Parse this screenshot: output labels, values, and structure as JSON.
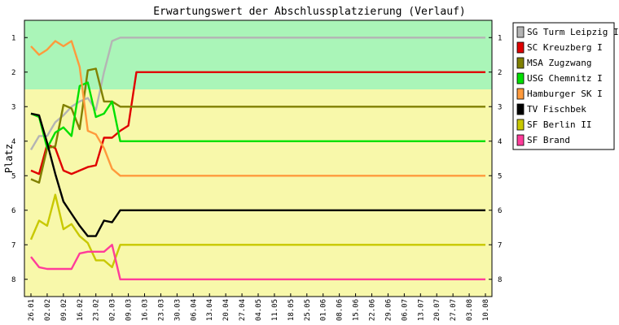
{
  "chart_data": {
    "type": "line",
    "title": "Erwartungswert der Abschlussplatzierung (Verlauf)",
    "ylabel": "Platz",
    "xlabel": "",
    "ylim": [
      0.5,
      8.5
    ],
    "y_inverted": true,
    "y_ticks": [
      1,
      2,
      3,
      4,
      5,
      6,
      7,
      8
    ],
    "grid": false,
    "legend_position": "right",
    "bands": [
      {
        "from": 0.5,
        "to": 2.5,
        "color": "#aaf5b8"
      },
      {
        "from": 2.5,
        "to": 8.5,
        "color": "#f8f8aa"
      }
    ],
    "categories": [
      "26.01",
      "02.02",
      "09.02",
      "16.02",
      "23.02",
      "02.03",
      "09.03",
      "16.03",
      "23.03",
      "30.03",
      "06.04",
      "13.04",
      "20.04",
      "27.04",
      "04.05",
      "11.05",
      "18.05",
      "25.05",
      "01.06",
      "08.06",
      "15.06",
      "22.06",
      "29.06",
      "06.07",
      "13.07",
      "20.07",
      "27.07",
      "03.08",
      "10.08"
    ],
    "series": [
      {
        "name": "SG Turm Leipzig I",
        "color": "#b4b4b4",
        "x": [
          0,
          0.5,
          1,
          1.5,
          2,
          2.5,
          3,
          3.5,
          4,
          4.5,
          5,
          5.5,
          6,
          6.5,
          7,
          7.5,
          8,
          8.5,
          9,
          9.5,
          10,
          10.5,
          11,
          28
        ],
        "values": [
          4.25,
          3.85,
          3.85,
          3.45,
          3.25,
          3.0,
          2.85,
          2.75,
          3.1,
          2.0,
          1.1,
          1.0,
          1.0,
          1.0,
          1.0,
          1.0,
          1.0,
          1.0,
          1.0,
          1.0,
          1.0,
          1.0,
          1.0,
          1.0
        ]
      },
      {
        "name": "SC Kreuzberg I",
        "color": "#e00000",
        "x": [
          0,
          0.5,
          1,
          1.5,
          2,
          2.5,
          3,
          3.5,
          4,
          4.5,
          5,
          5.5,
          6,
          6.5,
          7,
          7.5,
          8,
          8.5,
          9,
          9.5,
          10,
          10.5,
          11,
          28
        ],
        "values": [
          4.85,
          4.95,
          4.1,
          4.2,
          4.85,
          4.95,
          4.85,
          4.75,
          4.7,
          3.9,
          3.9,
          3.7,
          3.55,
          2.0,
          2.0,
          2.0,
          2.0,
          2.0,
          2.0,
          2.0,
          2.0,
          2.0,
          2.0,
          2.0
        ]
      },
      {
        "name": "MSA Zugzwang",
        "color": "#808000",
        "x": [
          0,
          0.5,
          1,
          1.5,
          2,
          2.5,
          3,
          3.5,
          4,
          4.5,
          5,
          5.5,
          6,
          6.5,
          7,
          7.5,
          8,
          8.5,
          9,
          9.5,
          10,
          10.5,
          11,
          28
        ],
        "values": [
          5.1,
          5.2,
          4.2,
          4.15,
          2.95,
          3.05,
          3.65,
          1.95,
          1.9,
          2.85,
          2.85,
          3.0,
          3.0,
          3.0,
          3.0,
          3.0,
          3.0,
          3.0,
          3.0,
          3.0,
          3.0,
          3.0,
          3.0,
          3.0
        ]
      },
      {
        "name": "USG Chemnitz I",
        "color": "#00e000",
        "x": [
          0,
          0.5,
          1,
          1.5,
          2,
          2.5,
          3,
          3.5,
          4,
          4.5,
          5,
          5.5,
          6,
          6.5,
          7,
          7.5,
          8,
          8.5,
          9,
          9.5,
          10,
          10.5,
          11,
          28
        ],
        "values": [
          3.2,
          3.3,
          4.2,
          3.75,
          3.6,
          3.85,
          2.4,
          2.3,
          3.3,
          3.2,
          2.85,
          4.0,
          4.0,
          4.0,
          4.0,
          4.0,
          4.0,
          4.0,
          4.0,
          4.0,
          4.0,
          4.0,
          4.0,
          4.0
        ]
      },
      {
        "name": "Hamburger SK I",
        "color": "#ff9a3c",
        "x": [
          0,
          0.5,
          1,
          1.5,
          2,
          2.5,
          3,
          3.5,
          4,
          4.5,
          5,
          5.5,
          6,
          6.5,
          7,
          7.5,
          8,
          8.5,
          9,
          9.5,
          10,
          10.5,
          11,
          28
        ],
        "values": [
          1.25,
          1.5,
          1.35,
          1.1,
          1.25,
          1.1,
          1.85,
          3.7,
          3.8,
          4.2,
          4.8,
          5.0,
          5.0,
          5.0,
          5.0,
          5.0,
          5.0,
          5.0,
          5.0,
          5.0,
          5.0,
          5.0,
          5.0,
          5.0
        ]
      },
      {
        "name": "TV Fischbek",
        "color": "#000000",
        "x": [
          0,
          0.5,
          1,
          1.5,
          2,
          2.5,
          3,
          3.5,
          4,
          4.5,
          5,
          5.5,
          6,
          6.5,
          7,
          7.5,
          8,
          8.5,
          9,
          9.5,
          10,
          10.5,
          11,
          28
        ],
        "values": [
          3.2,
          3.25,
          4.05,
          4.95,
          5.75,
          6.1,
          6.45,
          6.75,
          6.75,
          6.3,
          6.35,
          6.0,
          6.0,
          6.0,
          6.0,
          6.0,
          6.0,
          6.0,
          6.0,
          6.0,
          6.0,
          6.0,
          6.0,
          6.0
        ]
      },
      {
        "name": "SF Berlin II",
        "color": "#c8c800",
        "x": [
          0,
          0.5,
          1,
          1.5,
          2,
          2.5,
          3,
          3.5,
          4,
          4.5,
          5,
          5.5,
          6,
          6.5,
          7,
          7.5,
          8,
          8.5,
          9,
          9.5,
          10,
          10.5,
          11,
          28
        ],
        "values": [
          6.85,
          6.3,
          6.45,
          5.55,
          6.55,
          6.4,
          6.75,
          6.95,
          7.45,
          7.45,
          7.65,
          7.0,
          7.0,
          7.0,
          7.0,
          7.0,
          7.0,
          7.0,
          7.0,
          7.0,
          7.0,
          7.0,
          7.0,
          7.0
        ]
      },
      {
        "name": "SF Brand",
        "color": "#ff3c9a",
        "x": [
          0,
          0.5,
          1,
          1.5,
          2,
          2.5,
          3,
          3.5,
          4,
          4.5,
          5,
          5.5,
          6,
          6.5,
          7,
          7.5,
          8,
          8.5,
          9,
          9.5,
          10,
          10.5,
          11,
          28
        ],
        "values": [
          7.35,
          7.65,
          7.7,
          7.7,
          7.7,
          7.7,
          7.25,
          7.2,
          7.2,
          7.2,
          7.0,
          8.0,
          8.0,
          8.0,
          8.0,
          8.0,
          8.0,
          8.0,
          8.0,
          8.0,
          8.0,
          8.0,
          8.0,
          8.0
        ]
      }
    ]
  }
}
